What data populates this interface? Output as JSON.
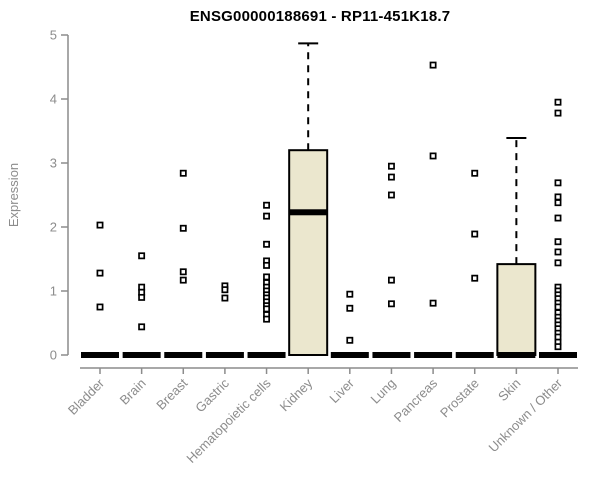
{
  "chart_data": {
    "type": "box",
    "title": "ENSG00000188691 - RP11-451K18.7",
    "ylabel": "Expression",
    "xlabel": "",
    "ylim": [
      0,
      5
    ],
    "yticks": [
      "0",
      "1",
      "2",
      "3",
      "4",
      "5"
    ],
    "grid": false,
    "legend": null,
    "layout_hint": "vertical boxplots, collapsed-at-zero boxes shown as thick black bars, open-square outlier markers, dashed upper whiskers",
    "colors": {
      "box_fill": "#ebe7ce",
      "box_stroke": "#000000",
      "median": "#000000",
      "outlier_fill": "#ffffff",
      "outlier_stroke": "#000000",
      "axis": "#8c8c8c",
      "title": "#000000",
      "background": "#ffffff"
    },
    "categories": [
      "Bladder",
      "Brain",
      "Breast",
      "Gastric",
      "Hematopoietic cells",
      "Kidney",
      "Liver",
      "Lung",
      "Pancreas",
      "Prostate",
      "Skin",
      "Unknown / Other"
    ],
    "series": [
      {
        "category": "Bladder",
        "q1": 0,
        "median": 0,
        "q3": 0,
        "whisker_low": 0,
        "whisker_high": 0,
        "outliers": [
          2.03,
          1.28,
          0.75
        ]
      },
      {
        "category": "Brain",
        "q1": 0,
        "median": 0,
        "q3": 0,
        "whisker_low": 0,
        "whisker_high": 0,
        "outliers": [
          1.55,
          1.06,
          0.98,
          0.9,
          0.44
        ]
      },
      {
        "category": "Breast",
        "q1": 0,
        "median": 0,
        "q3": 0,
        "whisker_low": 0,
        "whisker_high": 0,
        "outliers": [
          2.84,
          1.98,
          1.3,
          1.17
        ]
      },
      {
        "category": "Gastric",
        "q1": 0,
        "median": 0,
        "q3": 0,
        "whisker_low": 0,
        "whisker_high": 0,
        "outliers": [
          1.08,
          1.02,
          0.89
        ]
      },
      {
        "category": "Hematopoietic cells",
        "q1": 0,
        "median": 0,
        "q3": 0,
        "whisker_low": 0,
        "whisker_high": 0,
        "outliers": [
          2.34,
          2.17,
          1.73,
          1.47,
          1.4,
          1.22,
          1.13,
          1.06,
          1.0,
          0.94,
          0.89,
          0.83,
          0.77,
          0.72,
          0.63,
          0.56
        ]
      },
      {
        "category": "Kidney",
        "q1": 0,
        "median": 2.23,
        "q3": 3.2,
        "whisker_low": 0,
        "whisker_high": 4.87,
        "outliers": []
      },
      {
        "category": "Liver",
        "q1": 0,
        "median": 0,
        "q3": 0,
        "whisker_low": 0,
        "whisker_high": 0,
        "outliers": [
          0.95,
          0.73,
          0.23
        ]
      },
      {
        "category": "Lung",
        "q1": 0,
        "median": 0,
        "q3": 0,
        "whisker_low": 0,
        "whisker_high": 0,
        "outliers": [
          2.95,
          2.78,
          2.5,
          1.17,
          0.8
        ]
      },
      {
        "category": "Pancreas",
        "q1": 0,
        "median": 0,
        "q3": 0,
        "whisker_low": 0,
        "whisker_high": 0,
        "outliers": [
          4.53,
          3.11,
          0.81
        ]
      },
      {
        "category": "Prostate",
        "q1": 0,
        "median": 0,
        "q3": 0,
        "whisker_low": 0,
        "whisker_high": 0,
        "outliers": [
          2.84,
          1.89,
          1.2
        ]
      },
      {
        "category": "Skin",
        "q1": 0,
        "median": 0,
        "q3": 1.42,
        "whisker_low": 0,
        "whisker_high": 3.39,
        "outliers": []
      },
      {
        "category": "Unknown / Other",
        "q1": 0,
        "median": 0,
        "q3": 0,
        "whisker_low": 0,
        "whisker_high": 0,
        "outliers": [
          3.95,
          3.78,
          2.69,
          2.47,
          2.38,
          2.14,
          1.77,
          1.61,
          1.44,
          1.06,
          1.0,
          0.94,
          0.88,
          0.81,
          0.75,
          0.66,
          0.59,
          0.53,
          0.47,
          0.41,
          0.34,
          0.28,
          0.2,
          0.13
        ]
      }
    ]
  }
}
